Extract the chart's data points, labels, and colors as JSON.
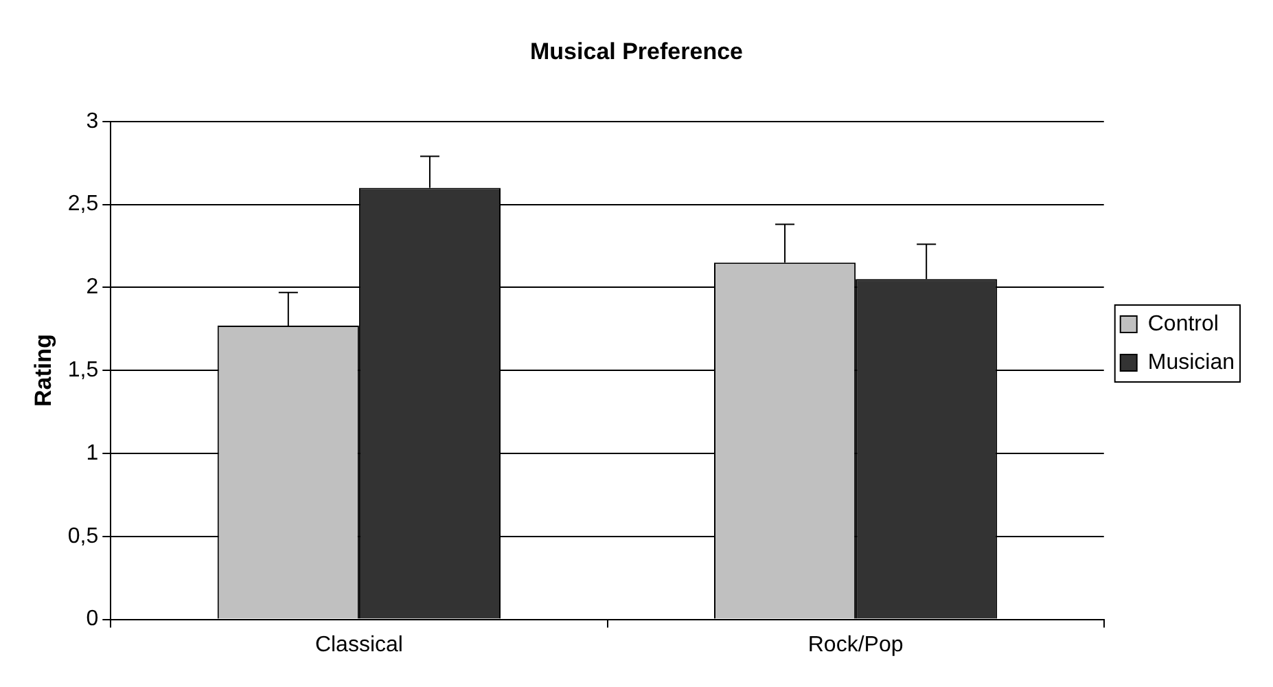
{
  "chart_data": {
    "type": "bar",
    "title": "Musical Preference",
    "ylabel": "Rating",
    "categories": [
      "Classical",
      "Rock/Pop"
    ],
    "series": [
      {
        "name": "Control",
        "color": "#c0c0c0",
        "values": [
          1.77,
          2.15
        ],
        "errors": [
          [
            1.77,
            1.97
          ],
          [
            2.15,
            2.38
          ]
        ]
      },
      {
        "name": "Musician",
        "color": "#333333",
        "values": [
          2.6,
          2.05
        ],
        "errors": [
          [
            2.6,
            2.79
          ],
          [
            2.05,
            2.26
          ]
        ]
      }
    ],
    "ylim": [
      0,
      3
    ],
    "yticks": [
      0,
      {
        "value": 0.5,
        "label": "0,5"
      },
      1,
      {
        "value": 1.5,
        "label": "1,5"
      },
      2,
      {
        "value": 2.5,
        "label": "2,5"
      },
      3
    ],
    "grid": "y",
    "legend": "right"
  }
}
